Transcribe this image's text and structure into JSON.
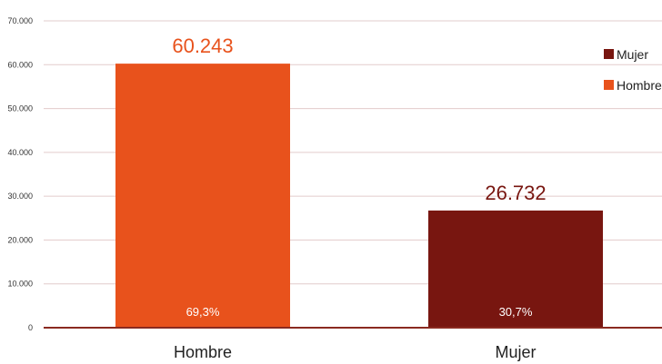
{
  "chart_data": {
    "type": "bar",
    "title": "",
    "xlabel": "",
    "ylabel": "",
    "categories": [
      "Hombre",
      "Mujer"
    ],
    "values": [
      60243,
      26732
    ],
    "value_labels": [
      "60.243",
      "26.732"
    ],
    "percent_labels": [
      "69,3%",
      "30,7%"
    ],
    "colors": [
      "#e8521c",
      "#781610"
    ],
    "ylim": [
      0,
      70000
    ],
    "yticks": [
      0,
      10000,
      20000,
      30000,
      40000,
      50000,
      60000,
      70000
    ],
    "ytick_labels": [
      "0",
      "10.000",
      "20.000",
      "30.000",
      "40.000",
      "50.000",
      "60.000",
      "70.000"
    ],
    "grid": true,
    "grid_color": "#e2cccc",
    "axis_color": "#8a2a20",
    "legend": {
      "position": "right",
      "entries": [
        {
          "label": "Mujer",
          "color": "#781610"
        },
        {
          "label": "Hombre",
          "color": "#e8521c"
        }
      ]
    }
  }
}
